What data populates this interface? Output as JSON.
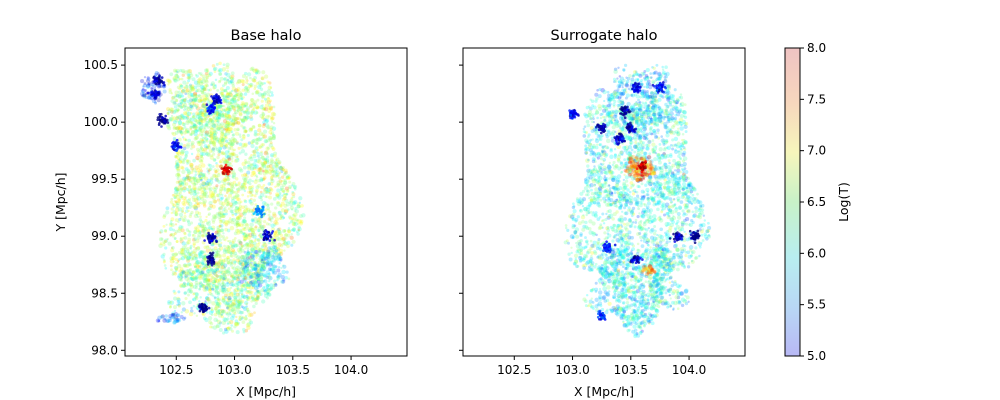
{
  "colors": {
    "low": "#00008b",
    "cold": "#1e64ff",
    "mid": "#5ad7c8",
    "warm": "#b4f064",
    "hot": "#ffd23c",
    "hottest": "#ff3c14"
  },
  "chart_data": [
    {
      "type": "scatter",
      "title": "Base halo",
      "xlabel": "X [Mpc/h]",
      "ylabel": "Y [Mpc/h]",
      "xlim": [
        102.06,
        104.48
      ],
      "ylim": [
        97.95,
        100.65
      ],
      "xticks": [
        102.5,
        103.0,
        103.5,
        104.0
      ],
      "xtick_labels": [
        "102.5",
        "103.0",
        "103.5",
        "104.0"
      ],
      "yticks": [
        98.0,
        98.5,
        99.0,
        99.5,
        100.0,
        100.5
      ],
      "ytick_labels": [
        "98.0",
        "98.5",
        "99.0",
        "99.5",
        "100.0",
        "100.5"
      ],
      "color_by": "Log(T)",
      "regions": [
        {
          "shape": "blob",
          "cx": 102.95,
          "cy": 99.35,
          "rx": 0.55,
          "ry": 1.05,
          "logT": 6.6,
          "density": 2600
        },
        {
          "shape": "blob",
          "cx": 102.75,
          "cy": 100.15,
          "rx": 0.35,
          "ry": 0.35,
          "logT": 6.5,
          "density": 500
        },
        {
          "shape": "blob",
          "cx": 103.25,
          "cy": 98.7,
          "rx": 0.2,
          "ry": 0.2,
          "logT": 6.0,
          "density": 250
        },
        {
          "shape": "blob",
          "cx": 102.85,
          "cy": 98.55,
          "rx": 0.4,
          "ry": 0.35,
          "logT": 6.4,
          "density": 500
        },
        {
          "shape": "blob",
          "cx": 102.3,
          "cy": 100.3,
          "rx": 0.1,
          "ry": 0.12,
          "logT": 5.5,
          "density": 80
        },
        {
          "shape": "blob",
          "cx": 102.45,
          "cy": 98.28,
          "rx": 0.12,
          "ry": 0.04,
          "logT": 5.7,
          "density": 40
        }
      ],
      "clumps": [
        {
          "x": 102.35,
          "y": 100.36,
          "logT": 5.1
        },
        {
          "x": 102.32,
          "y": 100.25,
          "logT": 5.3
        },
        {
          "x": 102.5,
          "y": 99.79,
          "logT": 5.4
        },
        {
          "x": 102.38,
          "y": 100.02,
          "logT": 5.0
        },
        {
          "x": 102.8,
          "y": 100.12,
          "logT": 5.4
        },
        {
          "x": 102.85,
          "y": 100.2,
          "logT": 5.2
        },
        {
          "x": 102.8,
          "y": 98.98,
          "logT": 5.1
        },
        {
          "x": 102.8,
          "y": 98.8,
          "logT": 5.0
        },
        {
          "x": 102.73,
          "y": 98.37,
          "logT": 5.0
        },
        {
          "x": 102.93,
          "y": 99.58,
          "logT": 7.7
        },
        {
          "x": 103.22,
          "y": 99.22,
          "logT": 5.8
        },
        {
          "x": 103.28,
          "y": 99.0,
          "logT": 5.2
        }
      ]
    },
    {
      "type": "scatter",
      "title": "Surrogate halo",
      "xlabel": "X [Mpc/h]",
      "ylabel": "",
      "xlim": [
        102.06,
        104.48
      ],
      "ylim": [
        97.95,
        100.65
      ],
      "xticks": [
        102.5,
        103.0,
        103.5,
        104.0
      ],
      "xtick_labels": [
        "102.5",
        "103.0",
        "103.5",
        "104.0"
      ],
      "color_by": "Log(T)",
      "regions": [
        {
          "shape": "blob",
          "cx": 103.55,
          "cy": 99.3,
          "rx": 0.55,
          "ry": 1.0,
          "logT": 6.2,
          "density": 2400
        },
        {
          "shape": "blob",
          "cx": 103.6,
          "cy": 100.2,
          "rx": 0.3,
          "ry": 0.3,
          "logT": 6.0,
          "density": 400
        },
        {
          "shape": "blob",
          "cx": 103.55,
          "cy": 98.55,
          "rx": 0.4,
          "ry": 0.35,
          "logT": 6.1,
          "density": 500
        },
        {
          "shape": "blob",
          "cx": 103.58,
          "cy": 99.6,
          "rx": 0.12,
          "ry": 0.1,
          "logT": 7.3,
          "density": 180
        },
        {
          "shape": "blob",
          "cx": 103.65,
          "cy": 98.7,
          "rx": 0.05,
          "ry": 0.04,
          "logT": 7.2,
          "density": 40
        }
      ],
      "clumps": [
        {
          "x": 103.25,
          "y": 99.95,
          "logT": 5.1
        },
        {
          "x": 103.4,
          "y": 99.85,
          "logT": 5.2
        },
        {
          "x": 103.5,
          "y": 99.95,
          "logT": 5.1
        },
        {
          "x": 103.45,
          "y": 100.1,
          "logT": 5.0
        },
        {
          "x": 103.55,
          "y": 100.3,
          "logT": 5.3
        },
        {
          "x": 103.75,
          "y": 100.3,
          "logT": 5.4
        },
        {
          "x": 103.0,
          "y": 100.07,
          "logT": 5.4
        },
        {
          "x": 103.9,
          "y": 99.0,
          "logT": 5.1
        },
        {
          "x": 104.05,
          "y": 99.0,
          "logT": 5.0
        },
        {
          "x": 103.55,
          "y": 98.8,
          "logT": 5.2
        },
        {
          "x": 103.3,
          "y": 98.9,
          "logT": 5.4
        },
        {
          "x": 103.25,
          "y": 98.3,
          "logT": 5.5
        },
        {
          "x": 103.6,
          "y": 99.62,
          "logT": 7.8
        }
      ]
    }
  ],
  "colorbar": {
    "label": "Log(T)",
    "min": 5.0,
    "max": 8.0,
    "ticks": [
      "5.0",
      "5.5",
      "6.0",
      "6.5",
      "7.0",
      "7.5",
      "8.0"
    ]
  }
}
